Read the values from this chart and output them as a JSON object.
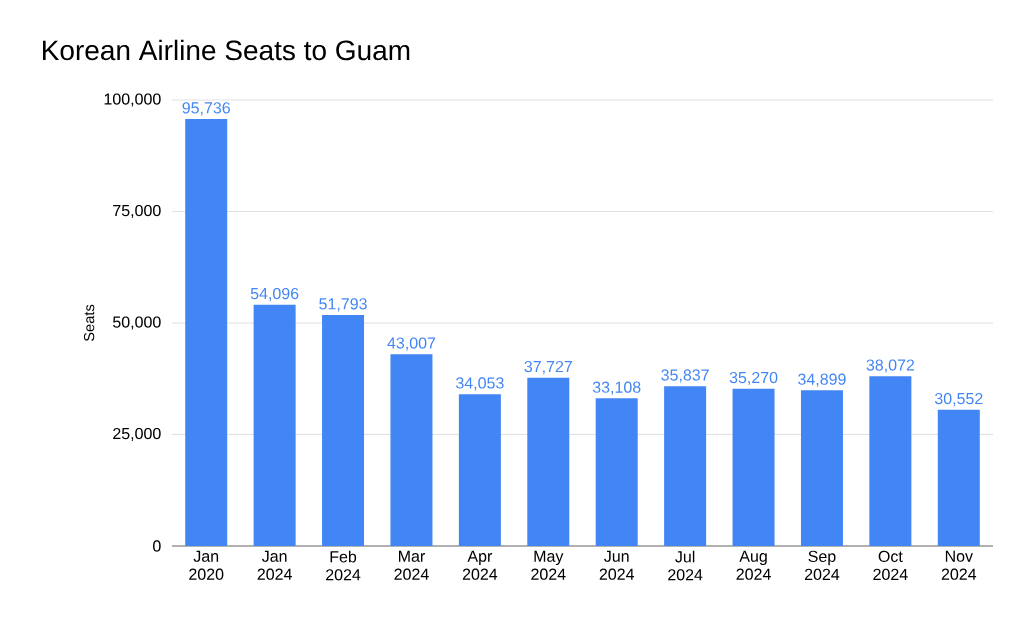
{
  "chart_data": {
    "type": "bar",
    "title": "Korean Airline Seats to Guam",
    "ylabel": "Seats",
    "categories": [
      "Jan 2020",
      "Jan 2024",
      "Feb 2024",
      "Mar 2024",
      "Apr 2024",
      "May 2024",
      "Jun 2024",
      "Jul 2024",
      "Aug 2024",
      "Sep 2024",
      "Oct 2024",
      "Nov 2024"
    ],
    "values": [
      95736,
      54096,
      51793,
      43007,
      34053,
      37727,
      33108,
      35837,
      35270,
      34899,
      38072,
      30552
    ],
    "value_labels": [
      "95,736",
      "54,096",
      "51,793",
      "43,007",
      "34,053",
      "37,727",
      "33,108",
      "35,837",
      "35,270",
      "34,899",
      "38,072",
      "30,552"
    ],
    "color": "#4285f4",
    "ylim": [
      0,
      100000
    ],
    "yticks": [
      0,
      {
        "value": 25000,
        "label": "25,000"
      },
      {
        "value": 50000,
        "label": "50,000"
      },
      {
        "value": 75000,
        "label": "75,000"
      },
      {
        "value": 100000,
        "label": "100,000"
      }
    ],
    "grid": "y"
  }
}
